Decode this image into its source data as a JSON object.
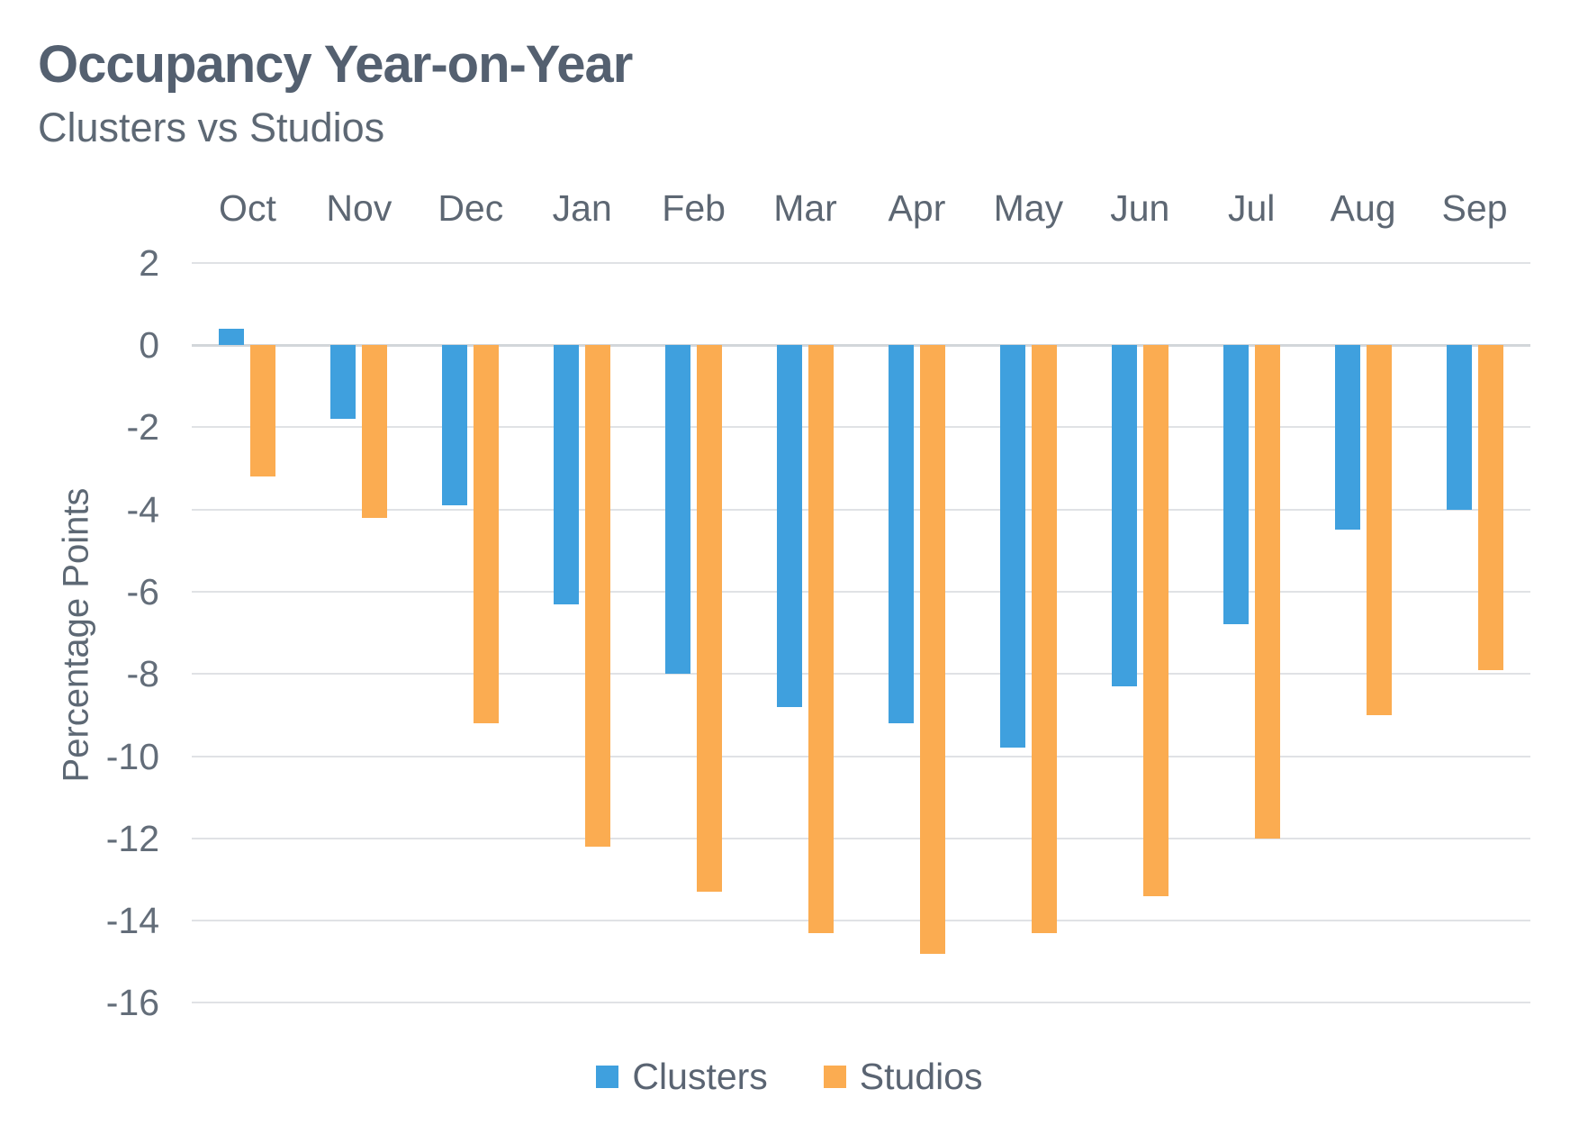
{
  "title": "Occupancy Year-on-Year",
  "subtitle": "Clusters vs Studios",
  "chart_data": {
    "type": "bar",
    "title": "Occupancy Year-on-Year",
    "subtitle": "Clusters vs Studios",
    "categories": [
      "Oct",
      "Nov",
      "Dec",
      "Jan",
      "Feb",
      "Mar",
      "Apr",
      "May",
      "Jun",
      "Jul",
      "Aug",
      "Sep"
    ],
    "series": [
      {
        "name": "Clusters",
        "color": "#3fa0de",
        "values": [
          0.4,
          -1.8,
          -3.9,
          -6.3,
          -8.0,
          -8.8,
          -9.2,
          -9.8,
          -8.3,
          -6.8,
          -4.5,
          -4.0
        ]
      },
      {
        "name": "Studios",
        "color": "#fbac51",
        "values": [
          -3.2,
          -4.2,
          -9.2,
          -12.2,
          -13.3,
          -14.3,
          -14.8,
          -14.3,
          -13.4,
          -12.0,
          -9.0,
          -7.9
        ]
      }
    ],
    "xlabel": "",
    "ylabel": "Percentage Points",
    "ylim": [
      -16,
      2
    ],
    "yticks": [
      2,
      0,
      -2,
      -4,
      -6,
      -8,
      -10,
      -12,
      -14,
      -16
    ],
    "grid": true,
    "gridline_color": "#e0e2e5",
    "zero_line_color": "#d2d6da",
    "legend_position": "bottom",
    "x_axis_position": "top"
  },
  "legend": {
    "items": [
      {
        "label": "Clusters"
      },
      {
        "label": "Studios"
      }
    ]
  }
}
